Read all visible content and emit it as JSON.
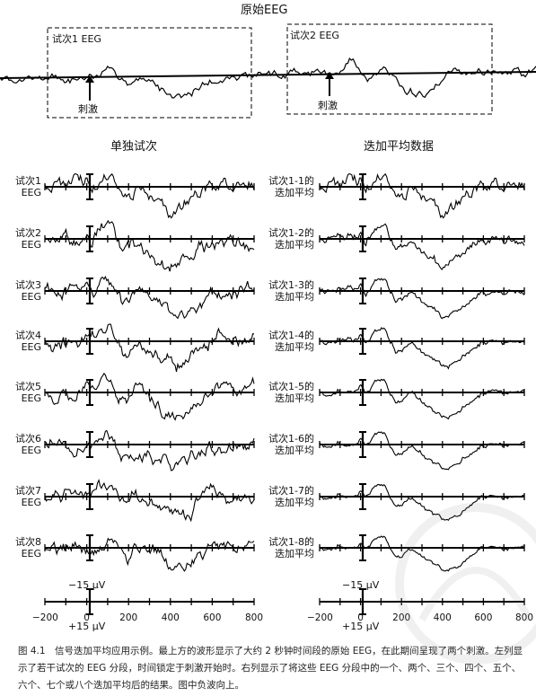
{
  "top": {
    "title": "原始EEG",
    "box1_label": "试次1 EEG",
    "box2_label": "试次2 EEG",
    "stim1": "刺激",
    "stim2": "刺激"
  },
  "left_column": {
    "title": "单独试次",
    "rows": [
      {
        "l1": "试次1",
        "l2": "EEG"
      },
      {
        "l1": "试次2",
        "l2": "EEG"
      },
      {
        "l1": "试次3",
        "l2": "EEG"
      },
      {
        "l1": "试次4",
        "l2": "EEG"
      },
      {
        "l1": "试次5",
        "l2": "EEG"
      },
      {
        "l1": "试次6",
        "l2": "EEG"
      },
      {
        "l1": "试次7",
        "l2": "EEG"
      },
      {
        "l1": "试次8",
        "l2": "EEG"
      }
    ],
    "scale_neg": "−15 μV",
    "scale_pos": "+15 μV",
    "axis_ticks": [
      "−200",
      "0",
      "200",
      "400",
      "600",
      "800"
    ]
  },
  "right_column": {
    "title": "迭加平均数据",
    "rows": [
      {
        "l1": "试次1-1的",
        "l2": "迭加平均"
      },
      {
        "l1": "试次1-2的",
        "l2": "迭加平均"
      },
      {
        "l1": "试次1-3的",
        "l2": "迭加平均"
      },
      {
        "l1": "试次1-4的",
        "l2": "迭加平均"
      },
      {
        "l1": "试次1-5的",
        "l2": "迭加平均"
      },
      {
        "l1": "试次1-6的",
        "l2": "迭加平均"
      },
      {
        "l1": "试次1-7的",
        "l2": "迭加平均"
      },
      {
        "l1": "试次1-8的",
        "l2": "迭加平均"
      }
    ],
    "scale_neg": "−15 μV",
    "scale_pos": "+15 μV",
    "axis_ticks": [
      "−200",
      "0",
      "200",
      "400",
      "600",
      "800"
    ]
  },
  "caption": "图 4.1　信号迭加平均应用示例。最上方的波形显示了大约 2 秒钟时间段的原始 EEG，在此期间呈现了两个刺激。左列显示了若干试次的 EEG 分段，时间锁定于刺激开始时。右列显示了将这些 EEG 分段中的一个、两个、三个、四个、五个、六个、七个或八个迭加平均后的结果。图中负波向上。"
}
